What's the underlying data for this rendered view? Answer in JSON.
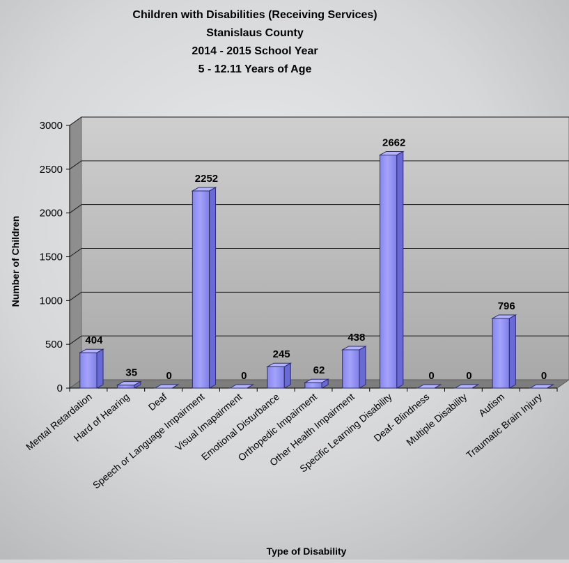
{
  "chart_data": {
    "type": "bar",
    "title_lines": [
      "Children with Disabilities (Receiving Services)",
      "Stanislaus County",
      "2014 - 2015 School Year",
      "5 - 12.11 Years of Age"
    ],
    "xlabel": "Type of Disability",
    "ylabel": "Number of Children",
    "ylim": [
      0,
      3000
    ],
    "yticks": [
      0,
      500,
      1000,
      1500,
      2000,
      2500,
      3000
    ],
    "grid": true,
    "legend": "none",
    "bar_color": "#8f8ff2",
    "categories": [
      "Mental Retardation",
      "Hard of Hearing",
      "Deaf",
      "Speech or Language Impairment",
      "Visual Imapairment",
      "Emotional Disturbance",
      "Orthopedic Impairment",
      "Other Health Impairment",
      "Specific Learning Disability",
      "Deaf- Blindness",
      "Multiple Disability",
      "Autism",
      "Traumatic Brain Injury"
    ],
    "values": [
      404,
      35,
      0,
      2252,
      0,
      245,
      62,
      438,
      2662,
      0,
      0,
      796,
      0
    ]
  }
}
